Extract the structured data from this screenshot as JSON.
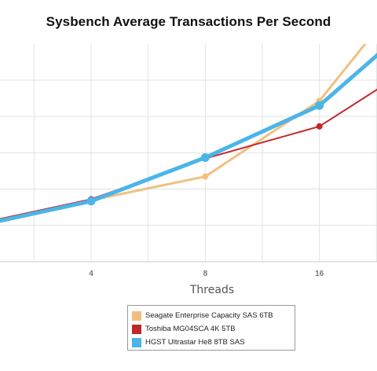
{
  "chart_data": {
    "type": "line",
    "title": "Sysbench Average Transactions Per Second",
    "xlabel": "Threads",
    "ylabel": "",
    "x_scale": "log2",
    "x_ticks": [
      4,
      8,
      16
    ],
    "x_tick_labels": [
      "4",
      "8",
      "16"
    ],
    "grid": true,
    "legend_position": "bottom",
    "series": [
      {
        "name": "Seagate Enterprise Capacity SAS 6TB",
        "color": "#f0c080",
        "x": [
          2,
          4,
          8,
          16,
          32
        ],
        "values": [
          170,
          450,
          700,
          1500,
          3000
        ]
      },
      {
        "name": "Toshiba MG04SCA 4K 5TB",
        "color": "#c0282a",
        "x": [
          2,
          4,
          8,
          16,
          32
        ],
        "values": [
          200,
          460,
          890,
          1230,
          2000
        ]
      },
      {
        "name": "HGST Ultrastar He8 8TB SAS",
        "color": "#4bb5e8",
        "x": [
          2,
          4,
          8,
          16,
          32
        ],
        "values": [
          180,
          440,
          900,
          1450,
          2500
        ]
      }
    ],
    "y_range_visible": [
      -200,
      2100
    ],
    "x_range_visible": [
      2.3,
      22.7
    ]
  }
}
